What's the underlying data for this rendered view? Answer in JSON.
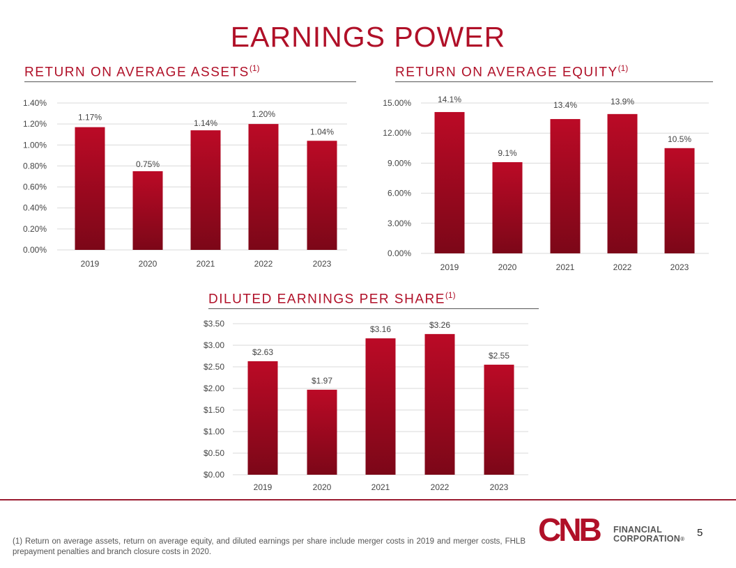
{
  "page": {
    "title": "EARNINGS POWER",
    "page_number": "5",
    "footnote": "(1) Return on average assets, return on average equity, and diluted earnings per share include merger costs in 2019 and merger costs, FHLB prepayment penalties and branch closure costs in 2020."
  },
  "logo": {
    "mark": "CNB",
    "line1": "FINANCIAL",
    "line2": "CORPORATION",
    "registered": "®",
    "colors": {
      "mark": "#b01028",
      "text": "#555555"
    }
  },
  "colors": {
    "bar_top": "#bb0a26",
    "bar_bottom": "#7c0718",
    "accent": "#b01028",
    "grid": "#d9d9d9"
  },
  "chart_data": [
    {
      "type": "bar",
      "title": "RETURN ON AVERAGE ASSETS",
      "title_sup": "(1)",
      "categories": [
        "2019",
        "2020",
        "2021",
        "2022",
        "2023"
      ],
      "values": [
        1.17,
        0.75,
        1.14,
        1.2,
        1.04
      ],
      "data_labels": [
        "1.17%",
        "0.75%",
        "1.14%",
        "1.20%",
        "1.04%"
      ],
      "ylim": [
        0,
        1.4
      ],
      "yticks": [
        0,
        0.2,
        0.4,
        0.6,
        0.8,
        1.0,
        1.2,
        1.4
      ],
      "ytick_labels": [
        "0.00%",
        "0.20%",
        "0.40%",
        "0.60%",
        "0.80%",
        "1.00%",
        "1.20%",
        "1.40%"
      ],
      "grid": true
    },
    {
      "type": "bar",
      "title": "RETURN ON AVERAGE EQUITY",
      "title_sup": "(1)",
      "categories": [
        "2019",
        "2020",
        "2021",
        "2022",
        "2023"
      ],
      "values": [
        14.1,
        9.1,
        13.4,
        13.9,
        10.5
      ],
      "data_labels": [
        "14.1%",
        "9.1%",
        "13.4%",
        "13.9%",
        "10.5%"
      ],
      "ylim": [
        0,
        15
      ],
      "yticks": [
        0,
        3,
        6,
        9,
        12,
        15
      ],
      "ytick_labels": [
        "0.00%",
        "3.00%",
        "6.00%",
        "9.00%",
        "12.00%",
        "15.00%"
      ],
      "grid": true
    },
    {
      "type": "bar",
      "title": "DILUTED EARNINGS PER SHARE",
      "title_sup": "(1)",
      "categories": [
        "2019",
        "2020",
        "2021",
        "2022",
        "2023"
      ],
      "values": [
        2.63,
        1.97,
        3.16,
        3.26,
        2.55
      ],
      "data_labels": [
        "$2.63",
        "$1.97",
        "$3.16",
        "$3.26",
        "$2.55"
      ],
      "ylim": [
        0,
        3.5
      ],
      "yticks": [
        0,
        0.5,
        1.0,
        1.5,
        2.0,
        2.5,
        3.0,
        3.5
      ],
      "ytick_labels": [
        "$0.00",
        "$0.50",
        "$1.00",
        "$1.50",
        "$2.00",
        "$2.50",
        "$3.00",
        "$3.50"
      ],
      "grid": true
    }
  ]
}
